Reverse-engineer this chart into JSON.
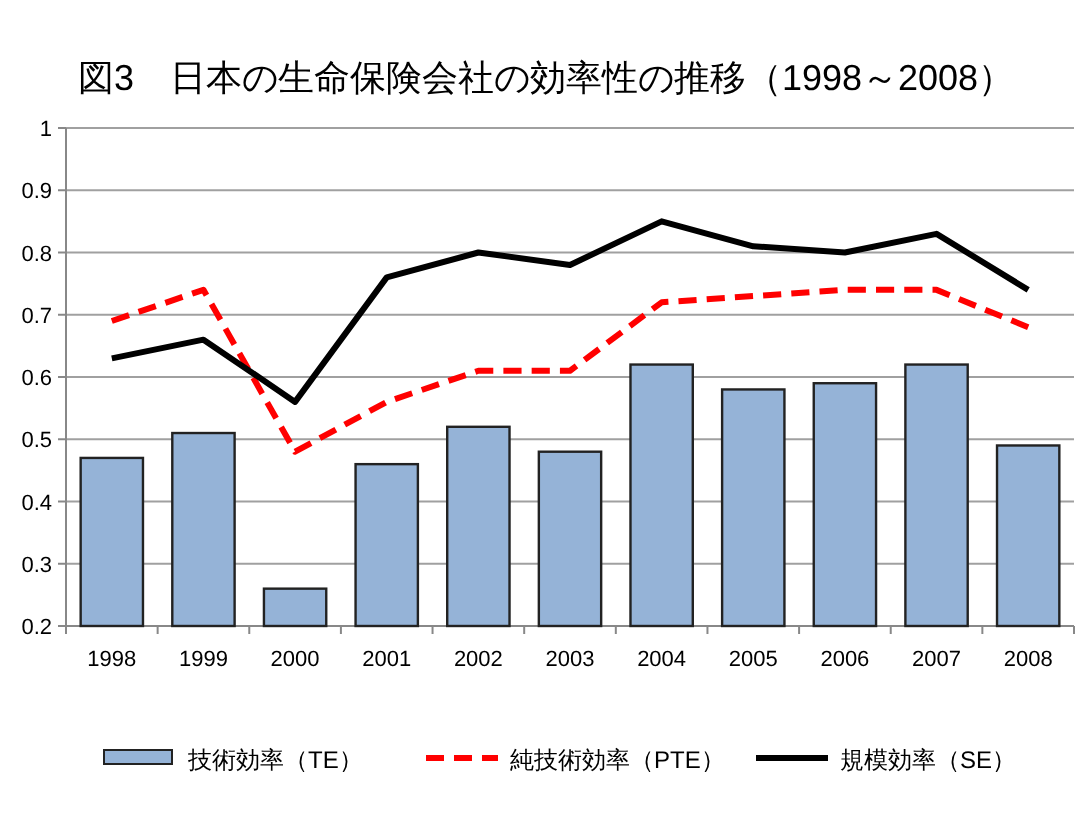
{
  "chart_data": {
    "type": "bar",
    "title": "図3　日本の生命保険会社の効率性の推移（1998～2008）",
    "categories": [
      "1998",
      "1999",
      "2000",
      "2001",
      "2002",
      "2003",
      "2004",
      "2005",
      "2006",
      "2007",
      "2008"
    ],
    "series": [
      {
        "name": "技術効率（TE）",
        "color": "#95b3d7",
        "values": [
          0.47,
          0.51,
          0.26,
          0.46,
          0.52,
          0.48,
          0.62,
          0.58,
          0.59,
          0.62,
          0.49
        ]
      },
      {
        "name": "純技術効率（PTE）",
        "type": "line",
        "line_style": "dashed",
        "color": "#ff0000",
        "values": [
          0.69,
          0.74,
          0.48,
          0.56,
          0.61,
          0.61,
          0.72,
          0.73,
          0.74,
          0.74,
          0.68
        ]
      },
      {
        "name": "規模効率（SE）",
        "type": "line",
        "line_style": "solid",
        "color": "#000000",
        "values": [
          0.63,
          0.66,
          0.56,
          0.76,
          0.8,
          0.78,
          0.85,
          0.81,
          0.8,
          0.83,
          0.74
        ]
      }
    ],
    "ylim": [
      0.2,
      1
    ],
    "yticks": [
      {
        "value": 0.2,
        "label": "0.2"
      },
      {
        "value": 0.3,
        "label": "0.3"
      },
      {
        "value": 0.4,
        "label": "0.4"
      },
      {
        "value": 0.5,
        "label": "0.5"
      },
      {
        "value": 0.6,
        "label": "0.6"
      },
      {
        "value": 0.7,
        "label": "0.7"
      },
      {
        "value": 0.8,
        "label": "0.8"
      },
      {
        "value": 0.9,
        "label": "0.9"
      },
      {
        "value": 1,
        "label": "1"
      }
    ],
    "grid": "y",
    "legend": "bottom",
    "marker": "none"
  }
}
